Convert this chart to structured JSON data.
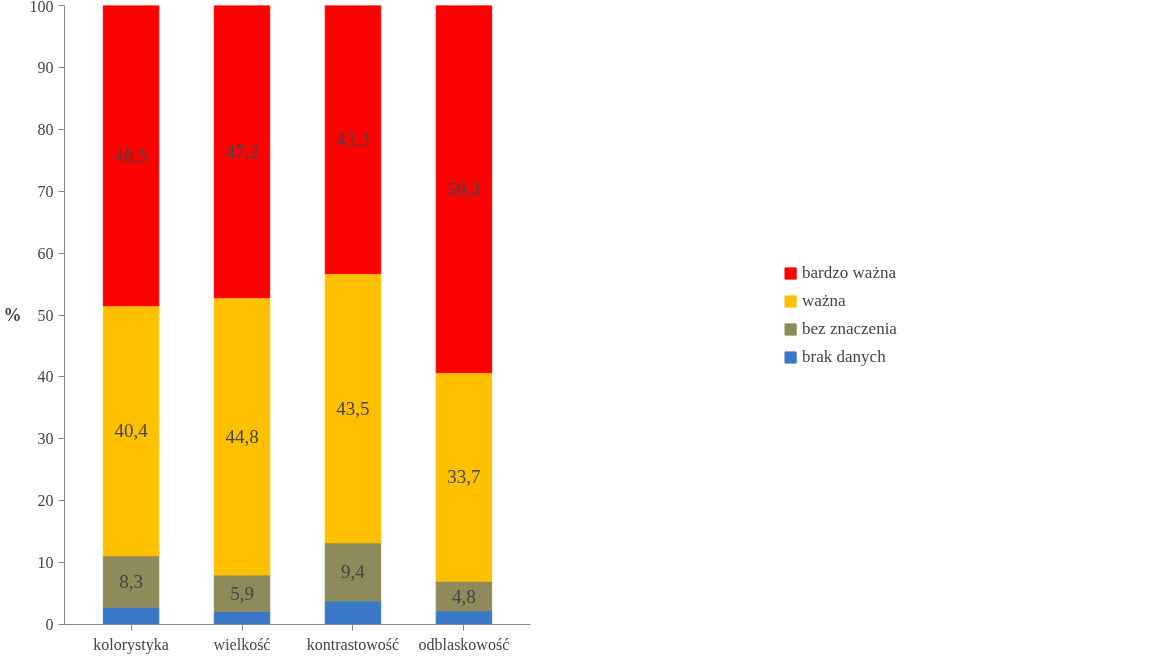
{
  "chart_data": {
    "type": "bar",
    "stacked": true,
    "ylabel": "%",
    "categories": [
      "kolorystyka",
      "wielkość",
      "kontrastowość",
      "odblaskowość"
    ],
    "series": [
      {
        "name": "brak danych",
        "color": "#3a78c8",
        "values": [
          2.8,
          2.1,
          3.8,
          2.2
        ],
        "value_labels": [
          null,
          null,
          null,
          null
        ]
      },
      {
        "name": "bez znaczenia",
        "color": "#8f8a5a",
        "values": [
          8.3,
          5.9,
          9.4,
          4.8
        ],
        "value_labels": [
          "8,3",
          "5,9",
          "9,4",
          "4,8"
        ]
      },
      {
        "name": "ważna",
        "color": "#ffc000",
        "values": [
          40.4,
          44.8,
          43.5,
          33.7
        ],
        "value_labels": [
          "40,4",
          "44,8",
          "43,5",
          "33,7"
        ]
      },
      {
        "name": "bardzo ważna",
        "color": "#ff0000",
        "values": [
          48.5,
          47.2,
          43.3,
          59.3
        ],
        "value_labels": [
          "48,5",
          "47,2",
          "43,3",
          "59,3"
        ]
      }
    ],
    "ylim": [
      0,
      100
    ],
    "yticks": [
      0,
      10,
      20,
      30,
      40,
      50,
      60,
      70,
      80,
      90,
      100
    ],
    "grid": false,
    "legend": "right"
  }
}
